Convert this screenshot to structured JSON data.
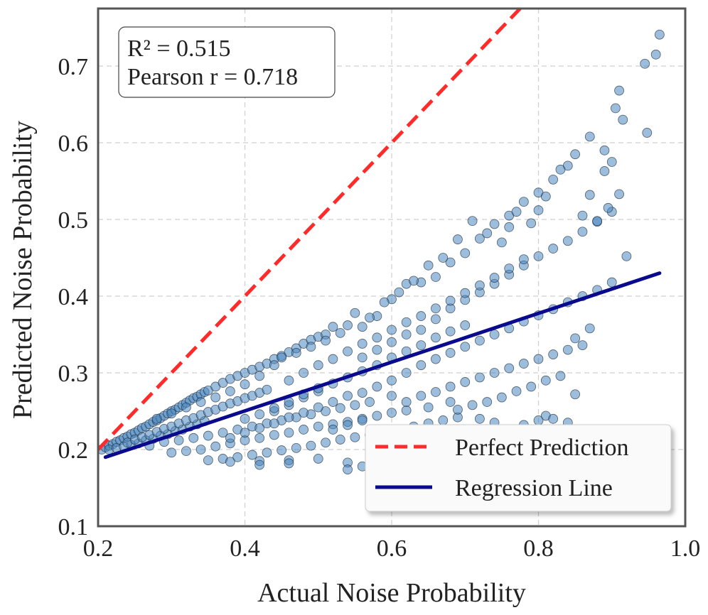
{
  "chart_data": {
    "type": "scatter",
    "xlabel": "Actual Noise Probability",
    "ylabel": "Predicted Noise Probability",
    "xlim": [
      0.2,
      1.0
    ],
    "ylim": [
      0.1,
      0.775
    ],
    "x_ticks": [
      "0.2",
      "0.4",
      "0.6",
      "0.8",
      "1.0"
    ],
    "y_ticks": [
      "0.1",
      "0.2",
      "0.3",
      "0.4",
      "0.5",
      "0.6",
      "0.7"
    ],
    "x_tick_values": [
      0.2,
      0.4,
      0.6,
      0.8,
      1.0
    ],
    "y_tick_values": [
      0.1,
      0.2,
      0.3,
      0.4,
      0.5,
      0.6,
      0.7
    ],
    "grid": true,
    "legend_position": "bottom-right",
    "stats": {
      "r2_text": "R² = 0.515",
      "pearson_text": "Pearson r = 0.718"
    },
    "lines": [
      {
        "name": "Perfect Prediction",
        "style": "dashed",
        "color": "#ff2b2b",
        "x": [
          0.2,
          0.775
        ],
        "y": [
          0.2,
          0.775
        ]
      },
      {
        "name": "Regression Line",
        "style": "solid",
        "color": "#0a0a8c",
        "x": [
          0.21,
          0.965
        ],
        "y": [
          0.19,
          0.43
        ]
      }
    ],
    "scatter_color": "#4a86bf",
    "points": [
      [
        0.205,
        0.2
      ],
      [
        0.21,
        0.203
      ],
      [
        0.215,
        0.205
      ],
      [
        0.22,
        0.207
      ],
      [
        0.225,
        0.21
      ],
      [
        0.23,
        0.212
      ],
      [
        0.235,
        0.215
      ],
      [
        0.24,
        0.217
      ],
      [
        0.245,
        0.22
      ],
      [
        0.25,
        0.222
      ],
      [
        0.255,
        0.225
      ],
      [
        0.26,
        0.228
      ],
      [
        0.265,
        0.23
      ],
      [
        0.27,
        0.233
      ],
      [
        0.275,
        0.236
      ],
      [
        0.28,
        0.238
      ],
      [
        0.285,
        0.241
      ],
      [
        0.29,
        0.244
      ],
      [
        0.295,
        0.247
      ],
      [
        0.3,
        0.25
      ],
      [
        0.305,
        0.252
      ],
      [
        0.31,
        0.255
      ],
      [
        0.315,
        0.258
      ],
      [
        0.32,
        0.261
      ],
      [
        0.325,
        0.264
      ],
      [
        0.33,
        0.267
      ],
      [
        0.335,
        0.269
      ],
      [
        0.34,
        0.272
      ],
      [
        0.345,
        0.275
      ],
      [
        0.35,
        0.277
      ],
      [
        0.36,
        0.282
      ],
      [
        0.37,
        0.287
      ],
      [
        0.38,
        0.292
      ],
      [
        0.39,
        0.296
      ],
      [
        0.4,
        0.3
      ],
      [
        0.41,
        0.304
      ],
      [
        0.42,
        0.308
      ],
      [
        0.43,
        0.312
      ],
      [
        0.44,
        0.318
      ],
      [
        0.45,
        0.322
      ],
      [
        0.46,
        0.327
      ],
      [
        0.47,
        0.332
      ],
      [
        0.48,
        0.338
      ],
      [
        0.49,
        0.343
      ],
      [
        0.5,
        0.347
      ],
      [
        0.51,
        0.35
      ],
      [
        0.215,
        0.2
      ],
      [
        0.225,
        0.202
      ],
      [
        0.235,
        0.204
      ],
      [
        0.245,
        0.206
      ],
      [
        0.255,
        0.208
      ],
      [
        0.265,
        0.212
      ],
      [
        0.275,
        0.214
      ],
      [
        0.285,
        0.218
      ],
      [
        0.295,
        0.22
      ],
      [
        0.305,
        0.224
      ],
      [
        0.315,
        0.226
      ],
      [
        0.325,
        0.23
      ],
      [
        0.335,
        0.233
      ],
      [
        0.345,
        0.237
      ],
      [
        0.24,
        0.209
      ],
      [
        0.25,
        0.213
      ],
      [
        0.26,
        0.216
      ],
      [
        0.27,
        0.219
      ],
      [
        0.28,
        0.223
      ],
      [
        0.29,
        0.227
      ],
      [
        0.3,
        0.23
      ],
      [
        0.31,
        0.234
      ],
      [
        0.32,
        0.238
      ],
      [
        0.33,
        0.241
      ],
      [
        0.34,
        0.245
      ],
      [
        0.35,
        0.249
      ],
      [
        0.36,
        0.252
      ],
      [
        0.37,
        0.256
      ],
      [
        0.38,
        0.26
      ],
      [
        0.39,
        0.263
      ],
      [
        0.4,
        0.267
      ],
      [
        0.41,
        0.27
      ],
      [
        0.42,
        0.274
      ],
      [
        0.43,
        0.278
      ],
      [
        0.27,
        0.205
      ],
      [
        0.29,
        0.21
      ],
      [
        0.31,
        0.212
      ],
      [
        0.33,
        0.215
      ],
      [
        0.35,
        0.218
      ],
      [
        0.37,
        0.222
      ],
      [
        0.39,
        0.226
      ],
      [
        0.41,
        0.23
      ],
      [
        0.43,
        0.234
      ],
      [
        0.45,
        0.238
      ],
      [
        0.47,
        0.242
      ],
      [
        0.49,
        0.246
      ],
      [
        0.51,
        0.25
      ],
      [
        0.53,
        0.254
      ],
      [
        0.55,
        0.258
      ],
      [
        0.57,
        0.262
      ],
      [
        0.3,
        0.196
      ],
      [
        0.32,
        0.198
      ],
      [
        0.34,
        0.2
      ],
      [
        0.36,
        0.204
      ],
      [
        0.38,
        0.208
      ],
      [
        0.4,
        0.212
      ],
      [
        0.42,
        0.215
      ],
      [
        0.44,
        0.219
      ],
      [
        0.46,
        0.222
      ],
      [
        0.48,
        0.226
      ],
      [
        0.5,
        0.23
      ],
      [
        0.52,
        0.233
      ],
      [
        0.54,
        0.236
      ],
      [
        0.56,
        0.24
      ],
      [
        0.58,
        0.244
      ],
      [
        0.6,
        0.248
      ],
      [
        0.62,
        0.251
      ],
      [
        0.35,
        0.186
      ],
      [
        0.37,
        0.188
      ],
      [
        0.39,
        0.19
      ],
      [
        0.41,
        0.193
      ],
      [
        0.43,
        0.196
      ],
      [
        0.45,
        0.199
      ],
      [
        0.47,
        0.202
      ],
      [
        0.49,
        0.205
      ],
      [
        0.51,
        0.209
      ],
      [
        0.53,
        0.213
      ],
      [
        0.55,
        0.216
      ],
      [
        0.57,
        0.219
      ],
      [
        0.59,
        0.223
      ],
      [
        0.61,
        0.226
      ],
      [
        0.63,
        0.23
      ],
      [
        0.65,
        0.234
      ],
      [
        0.67,
        0.238
      ],
      [
        0.69,
        0.242
      ],
      [
        0.38,
        0.184
      ],
      [
        0.42,
        0.185
      ],
      [
        0.46,
        0.186
      ],
      [
        0.5,
        0.188
      ],
      [
        0.54,
        0.183
      ],
      [
        0.58,
        0.186
      ],
      [
        0.62,
        0.19
      ],
      [
        0.66,
        0.195
      ],
      [
        0.7,
        0.2
      ],
      [
        0.74,
        0.205
      ],
      [
        0.78,
        0.21
      ],
      [
        0.8,
        0.214
      ],
      [
        0.82,
        0.22
      ],
      [
        0.84,
        0.225
      ],
      [
        0.54,
        0.174
      ],
      [
        0.56,
        0.178
      ],
      [
        0.6,
        0.182
      ],
      [
        0.64,
        0.186
      ],
      [
        0.68,
        0.188
      ],
      [
        0.72,
        0.192
      ],
      [
        0.76,
        0.197
      ],
      [
        0.52,
        0.36
      ],
      [
        0.54,
        0.362
      ],
      [
        0.56,
        0.36
      ],
      [
        0.58,
        0.374
      ],
      [
        0.6,
        0.396
      ],
      [
        0.62,
        0.416
      ],
      [
        0.64,
        0.418
      ],
      [
        0.66,
        0.425
      ],
      [
        0.68,
        0.444
      ],
      [
        0.7,
        0.456
      ],
      [
        0.72,
        0.475
      ],
      [
        0.74,
        0.494
      ],
      [
        0.76,
        0.505
      ],
      [
        0.78,
        0.523
      ],
      [
        0.8,
        0.535
      ],
      [
        0.82,
        0.552
      ],
      [
        0.84,
        0.57
      ],
      [
        0.85,
        0.585
      ],
      [
        0.87,
        0.608
      ],
      [
        0.89,
        0.59
      ],
      [
        0.9,
        0.575
      ],
      [
        0.91,
        0.668
      ],
      [
        0.905,
        0.645
      ],
      [
        0.915,
        0.63
      ],
      [
        0.945,
        0.703
      ],
      [
        0.96,
        0.715
      ],
      [
        0.965,
        0.741
      ],
      [
        0.948,
        0.613
      ],
      [
        0.56,
        0.32
      ],
      [
        0.58,
        0.33
      ],
      [
        0.6,
        0.34
      ],
      [
        0.62,
        0.35
      ],
      [
        0.64,
        0.356
      ],
      [
        0.66,
        0.37
      ],
      [
        0.68,
        0.384
      ],
      [
        0.7,
        0.395
      ],
      [
        0.72,
        0.405
      ],
      [
        0.74,
        0.416
      ],
      [
        0.76,
        0.428
      ],
      [
        0.78,
        0.44
      ],
      [
        0.8,
        0.452
      ],
      [
        0.82,
        0.462
      ],
      [
        0.84,
        0.472
      ],
      [
        0.86,
        0.484
      ],
      [
        0.88,
        0.497
      ],
      [
        0.9,
        0.51
      ],
      [
        0.91,
        0.533
      ],
      [
        0.92,
        0.452
      ],
      [
        0.6,
        0.29
      ],
      [
        0.62,
        0.3
      ],
      [
        0.64,
        0.31
      ],
      [
        0.66,
        0.318
      ],
      [
        0.68,
        0.326
      ],
      [
        0.7,
        0.334
      ],
      [
        0.72,
        0.342
      ],
      [
        0.74,
        0.35
      ],
      [
        0.76,
        0.358
      ],
      [
        0.78,
        0.367
      ],
      [
        0.8,
        0.375
      ],
      [
        0.82,
        0.383
      ],
      [
        0.84,
        0.392
      ],
      [
        0.86,
        0.4
      ],
      [
        0.88,
        0.408
      ],
      [
        0.9,
        0.418
      ],
      [
        0.64,
        0.27
      ],
      [
        0.66,
        0.275
      ],
      [
        0.68,
        0.282
      ],
      [
        0.7,
        0.288
      ],
      [
        0.72,
        0.294
      ],
      [
        0.74,
        0.3
      ],
      [
        0.76,
        0.306
      ],
      [
        0.78,
        0.312
      ],
      [
        0.8,
        0.318
      ],
      [
        0.82,
        0.324
      ],
      [
        0.84,
        0.33
      ],
      [
        0.86,
        0.336
      ],
      [
        0.87,
        0.358
      ],
      [
        0.85,
        0.345
      ],
      [
        0.69,
        0.252
      ],
      [
        0.71,
        0.258
      ],
      [
        0.73,
        0.262
      ],
      [
        0.75,
        0.268
      ],
      [
        0.77,
        0.276
      ],
      [
        0.79,
        0.282
      ],
      [
        0.81,
        0.29
      ],
      [
        0.83,
        0.296
      ],
      [
        0.85,
        0.272
      ],
      [
        0.81,
        0.244
      ],
      [
        0.78,
        0.232
      ],
      [
        0.8,
        0.238
      ],
      [
        0.82,
        0.24
      ],
      [
        0.84,
        0.235
      ],
      [
        0.86,
        0.505
      ],
      [
        0.87,
        0.532
      ],
      [
        0.88,
        0.498
      ],
      [
        0.89,
        0.563
      ],
      [
        0.895,
        0.515
      ],
      [
        0.83,
        0.565
      ],
      [
        0.81,
        0.53
      ],
      [
        0.8,
        0.512
      ],
      [
        0.79,
        0.495
      ],
      [
        0.77,
        0.51
      ],
      [
        0.76,
        0.49
      ],
      [
        0.75,
        0.47
      ],
      [
        0.73,
        0.482
      ],
      [
        0.71,
        0.498
      ],
      [
        0.69,
        0.474
      ],
      [
        0.67,
        0.45
      ],
      [
        0.65,
        0.44
      ],
      [
        0.63,
        0.42
      ],
      [
        0.61,
        0.405
      ],
      [
        0.59,
        0.392
      ],
      [
        0.57,
        0.372
      ],
      [
        0.55,
        0.378
      ],
      [
        0.53,
        0.352
      ],
      [
        0.51,
        0.342
      ],
      [
        0.49,
        0.334
      ],
      [
        0.47,
        0.326
      ],
      [
        0.45,
        0.32
      ],
      [
        0.44,
        0.31
      ],
      [
        0.42,
        0.296
      ],
      [
        0.4,
        0.285
      ],
      [
        0.38,
        0.276
      ],
      [
        0.36,
        0.268
      ],
      [
        0.34,
        0.262
      ],
      [
        0.32,
        0.255
      ],
      [
        0.3,
        0.247
      ],
      [
        0.28,
        0.24
      ],
      [
        0.44,
        0.25
      ],
      [
        0.46,
        0.258
      ],
      [
        0.48,
        0.268
      ],
      [
        0.5,
        0.276
      ],
      [
        0.52,
        0.286
      ],
      [
        0.54,
        0.294
      ],
      [
        0.56,
        0.302
      ],
      [
        0.58,
        0.31
      ],
      [
        0.6,
        0.32
      ],
      [
        0.62,
        0.328
      ],
      [
        0.64,
        0.336
      ],
      [
        0.66,
        0.346
      ],
      [
        0.68,
        0.354
      ],
      [
        0.7,
        0.362
      ],
      [
        0.46,
        0.29
      ],
      [
        0.48,
        0.3
      ],
      [
        0.5,
        0.31
      ],
      [
        0.52,
        0.318
      ],
      [
        0.54,
        0.328
      ],
      [
        0.56,
        0.338
      ],
      [
        0.58,
        0.346
      ],
      [
        0.6,
        0.356
      ],
      [
        0.62,
        0.366
      ],
      [
        0.64,
        0.374
      ],
      [
        0.66,
        0.384
      ],
      [
        0.68,
        0.394
      ],
      [
        0.7,
        0.404
      ],
      [
        0.72,
        0.414
      ],
      [
        0.74,
        0.424
      ],
      [
        0.76,
        0.436
      ],
      [
        0.78,
        0.448
      ],
      [
        0.4,
        0.24
      ],
      [
        0.42,
        0.246
      ],
      [
        0.44,
        0.254
      ],
      [
        0.46,
        0.262
      ],
      [
        0.48,
        0.272
      ],
      [
        0.5,
        0.28
      ],
      [
        0.52,
        0.262
      ],
      [
        0.54,
        0.27
      ],
      [
        0.56,
        0.274
      ],
      [
        0.38,
        0.215
      ],
      [
        0.4,
        0.222
      ],
      [
        0.42,
        0.228
      ],
      [
        0.44,
        0.234
      ],
      [
        0.46,
        0.242
      ],
      [
        0.48,
        0.248
      ],
      [
        0.5,
        0.255
      ],
      [
        0.52,
        0.226
      ],
      [
        0.54,
        0.232
      ],
      [
        0.56,
        0.238
      ],
      [
        0.58,
        0.282
      ],
      [
        0.6,
        0.27
      ],
      [
        0.62,
        0.262
      ],
      [
        0.65,
        0.255
      ],
      [
        0.68,
        0.262
      ],
      [
        0.72,
        0.24
      ],
      [
        0.74,
        0.235
      ],
      [
        0.76,
        0.22
      ],
      [
        0.42,
        0.18
      ],
      [
        0.46,
        0.182
      ]
    ]
  }
}
